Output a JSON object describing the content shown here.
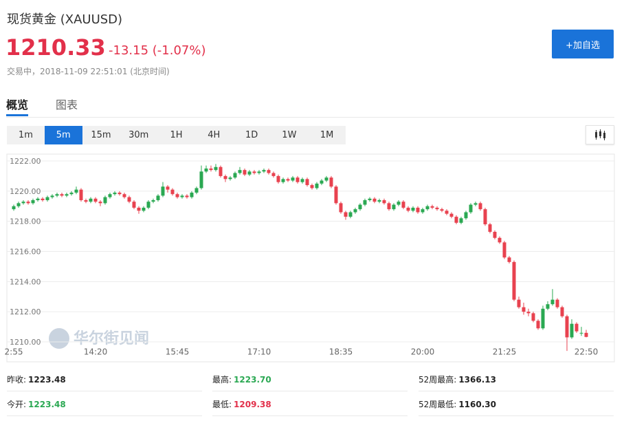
{
  "header": {
    "title": "现货黄金 (XAUUSD)",
    "price": "1210.33",
    "change": "-13.15 (-1.07%)",
    "status": "交易中，2018-11-09 22:51:01 (北京时间)",
    "button": "+加自选"
  },
  "tabs": [
    "概览",
    "图表"
  ],
  "periods": [
    "1m",
    "5m",
    "15m",
    "30m",
    "1H",
    "4H",
    "1D",
    "1W",
    "1M"
  ],
  "active_period": 1,
  "watermark": "华尔街见闻",
  "chart_data": {
    "type": "candlestick",
    "up_color": "#2aa852",
    "down_color": "#e8424f",
    "ylim": [
      1210,
      1222
    ],
    "yticks": [
      {
        "value": 1210,
        "label": "1210.00"
      },
      {
        "value": 1212,
        "label": "1212.00"
      },
      {
        "value": 1214,
        "label": "1214.00"
      },
      {
        "value": 1216,
        "label": "1216.00"
      },
      {
        "value": 1218,
        "label": "1218.00"
      },
      {
        "value": 1220,
        "label": "1220.00"
      },
      {
        "value": 1222,
        "label": "1222.00"
      }
    ],
    "xtick_labels": [
      "2:55",
      "14:20",
      "15:45",
      "17:10",
      "18:35",
      "20:00",
      "21:25",
      "22:50"
    ],
    "grid": true,
    "ohlc": [
      [
        1218.8,
        1219.1,
        1218.7,
        1219.0
      ],
      [
        1219.0,
        1219.3,
        1218.9,
        1219.2
      ],
      [
        1219.2,
        1219.4,
        1219.1,
        1219.3
      ],
      [
        1219.3,
        1219.4,
        1219.1,
        1219.2
      ],
      [
        1219.2,
        1219.5,
        1219.1,
        1219.4
      ],
      [
        1219.4,
        1219.6,
        1219.3,
        1219.5
      ],
      [
        1219.5,
        1219.6,
        1219.3,
        1219.4
      ],
      [
        1219.4,
        1219.7,
        1219.3,
        1219.6
      ],
      [
        1219.6,
        1219.8,
        1219.5,
        1219.7
      ],
      [
        1219.7,
        1219.9,
        1219.6,
        1219.8
      ],
      [
        1219.8,
        1219.9,
        1219.6,
        1219.7
      ],
      [
        1219.7,
        1219.9,
        1219.6,
        1219.8
      ],
      [
        1219.8,
        1220.0,
        1219.7,
        1219.9
      ],
      [
        1219.9,
        1220.3,
        1219.8,
        1220.1
      ],
      [
        1220.1,
        1220.2,
        1219.3,
        1219.4
      ],
      [
        1219.4,
        1219.5,
        1219.2,
        1219.3
      ],
      [
        1219.3,
        1219.6,
        1219.2,
        1219.5
      ],
      [
        1219.5,
        1219.6,
        1219.2,
        1219.3
      ],
      [
        1219.3,
        1219.4,
        1219.0,
        1219.2
      ],
      [
        1219.2,
        1219.7,
        1219.1,
        1219.6
      ],
      [
        1219.6,
        1219.9,
        1219.5,
        1219.8
      ],
      [
        1219.8,
        1220.0,
        1219.7,
        1219.9
      ],
      [
        1219.9,
        1220.0,
        1219.7,
        1219.8
      ],
      [
        1219.8,
        1219.9,
        1219.5,
        1219.6
      ],
      [
        1219.6,
        1219.7,
        1219.2,
        1219.3
      ],
      [
        1219.3,
        1219.4,
        1218.8,
        1218.9
      ],
      [
        1218.9,
        1219.0,
        1218.5,
        1218.7
      ],
      [
        1218.7,
        1219.0,
        1218.6,
        1218.9
      ],
      [
        1218.9,
        1219.4,
        1218.8,
        1219.3
      ],
      [
        1219.3,
        1219.5,
        1219.2,
        1219.4
      ],
      [
        1219.4,
        1219.8,
        1219.3,
        1219.7
      ],
      [
        1219.7,
        1220.6,
        1219.6,
        1220.3
      ],
      [
        1220.3,
        1220.4,
        1219.9,
        1220.1
      ],
      [
        1220.1,
        1220.2,
        1219.7,
        1219.8
      ],
      [
        1219.8,
        1219.9,
        1219.5,
        1219.6
      ],
      [
        1219.6,
        1219.8,
        1219.5,
        1219.7
      ],
      [
        1219.7,
        1219.8,
        1219.5,
        1219.6
      ],
      [
        1219.6,
        1220.0,
        1219.5,
        1219.9
      ],
      [
        1219.9,
        1220.3,
        1219.8,
        1220.2
      ],
      [
        1220.2,
        1221.7,
        1220.1,
        1221.3
      ],
      [
        1221.3,
        1221.7,
        1221.2,
        1221.5
      ],
      [
        1221.5,
        1221.7,
        1221.3,
        1221.4
      ],
      [
        1221.4,
        1221.8,
        1221.3,
        1221.6
      ],
      [
        1221.6,
        1221.7,
        1220.9,
        1221.0
      ],
      [
        1221.0,
        1221.1,
        1220.6,
        1220.8
      ],
      [
        1220.8,
        1221.0,
        1220.7,
        1220.9
      ],
      [
        1220.9,
        1221.3,
        1220.8,
        1221.2
      ],
      [
        1221.2,
        1221.6,
        1221.1,
        1221.4
      ],
      [
        1221.4,
        1221.5,
        1221.0,
        1221.1
      ],
      [
        1221.1,
        1221.4,
        1221.0,
        1221.3
      ],
      [
        1221.3,
        1221.4,
        1221.1,
        1221.2
      ],
      [
        1221.2,
        1221.4,
        1221.1,
        1221.3
      ],
      [
        1221.3,
        1221.5,
        1221.2,
        1221.4
      ],
      [
        1221.4,
        1221.5,
        1221.1,
        1221.2
      ],
      [
        1221.2,
        1221.3,
        1220.9,
        1221.0
      ],
      [
        1221.0,
        1221.1,
        1220.5,
        1220.6
      ],
      [
        1220.6,
        1220.9,
        1220.5,
        1220.8
      ],
      [
        1220.8,
        1220.9,
        1220.6,
        1220.7
      ],
      [
        1220.7,
        1221.0,
        1220.6,
        1220.9
      ],
      [
        1220.9,
        1221.0,
        1220.5,
        1220.6
      ],
      [
        1220.6,
        1220.9,
        1220.5,
        1220.8
      ],
      [
        1220.8,
        1220.9,
        1220.3,
        1220.4
      ],
      [
        1220.4,
        1220.5,
        1220.1,
        1220.2
      ],
      [
        1220.2,
        1220.6,
        1220.1,
        1220.5
      ],
      [
        1220.5,
        1220.8,
        1220.4,
        1220.7
      ],
      [
        1220.7,
        1221.0,
        1220.6,
        1220.9
      ],
      [
        1220.9,
        1221.0,
        1220.2,
        1220.3
      ],
      [
        1220.3,
        1220.4,
        1219.1,
        1219.2
      ],
      [
        1219.2,
        1219.3,
        1218.5,
        1218.6
      ],
      [
        1218.6,
        1218.7,
        1218.1,
        1218.3
      ],
      [
        1218.3,
        1218.7,
        1218.2,
        1218.6
      ],
      [
        1218.6,
        1218.9,
        1218.5,
        1218.8
      ],
      [
        1218.8,
        1219.2,
        1218.7,
        1219.1
      ],
      [
        1219.1,
        1219.5,
        1219.0,
        1219.4
      ],
      [
        1219.4,
        1219.6,
        1219.3,
        1219.5
      ],
      [
        1219.5,
        1219.6,
        1219.2,
        1219.3
      ],
      [
        1219.3,
        1219.5,
        1219.2,
        1219.4
      ],
      [
        1219.4,
        1219.5,
        1219.1,
        1219.2
      ],
      [
        1219.2,
        1219.3,
        1218.7,
        1218.8
      ],
      [
        1218.8,
        1219.2,
        1218.7,
        1219.1
      ],
      [
        1219.1,
        1219.4,
        1219.0,
        1219.3
      ],
      [
        1219.3,
        1219.4,
        1218.8,
        1218.9
      ],
      [
        1218.9,
        1219.0,
        1218.6,
        1218.7
      ],
      [
        1218.7,
        1219.0,
        1218.6,
        1218.9
      ],
      [
        1218.9,
        1219.0,
        1218.5,
        1218.6
      ],
      [
        1218.6,
        1218.9,
        1218.5,
        1218.8
      ],
      [
        1218.8,
        1219.1,
        1218.7,
        1219.0
      ],
      [
        1219.0,
        1219.1,
        1218.8,
        1218.9
      ],
      [
        1218.9,
        1219.0,
        1218.7,
        1218.8
      ],
      [
        1218.8,
        1218.9,
        1218.6,
        1218.7
      ],
      [
        1218.7,
        1218.8,
        1218.4,
        1218.5
      ],
      [
        1218.5,
        1218.6,
        1218.2,
        1218.3
      ],
      [
        1218.3,
        1218.4,
        1217.8,
        1217.9
      ],
      [
        1217.9,
        1218.3,
        1217.8,
        1218.2
      ],
      [
        1218.2,
        1218.7,
        1218.1,
        1218.6
      ],
      [
        1218.6,
        1219.2,
        1218.5,
        1219.1
      ],
      [
        1219.1,
        1219.3,
        1219.0,
        1219.2
      ],
      [
        1219.2,
        1219.3,
        1218.7,
        1218.8
      ],
      [
        1218.8,
        1218.9,
        1217.7,
        1217.8
      ],
      [
        1217.8,
        1217.9,
        1217.2,
        1217.3
      ],
      [
        1217.3,
        1217.4,
        1216.8,
        1216.9
      ],
      [
        1216.9,
        1217.0,
        1216.5,
        1216.6
      ],
      [
        1216.6,
        1216.7,
        1215.5,
        1215.6
      ],
      [
        1215.6,
        1215.7,
        1215.2,
        1215.3
      ],
      [
        1215.3,
        1215.4,
        1212.7,
        1212.8
      ],
      [
        1212.8,
        1213.0,
        1212.2,
        1212.3
      ],
      [
        1212.3,
        1212.6,
        1211.8,
        1212.0
      ],
      [
        1212.0,
        1212.2,
        1211.7,
        1211.9
      ],
      [
        1211.9,
        1212.0,
        1211.3,
        1211.4
      ],
      [
        1211.4,
        1211.5,
        1210.8,
        1210.9
      ],
      [
        1210.9,
        1212.4,
        1210.8,
        1212.2
      ],
      [
        1212.2,
        1212.7,
        1212.1,
        1212.5
      ],
      [
        1212.5,
        1213.5,
        1212.4,
        1212.8
      ],
      [
        1212.8,
        1212.9,
        1212.2,
        1212.3
      ],
      [
        1212.3,
        1212.4,
        1211.6,
        1211.7
      ],
      [
        1211.7,
        1211.8,
        1209.4,
        1210.3
      ],
      [
        1210.3,
        1211.5,
        1210.2,
        1211.2
      ],
      [
        1211.2,
        1211.3,
        1210.6,
        1210.7
      ],
      [
        1210.6,
        1211.0,
        1210.4,
        1210.6
      ],
      [
        1210.6,
        1210.8,
        1210.3,
        1210.33
      ]
    ]
  },
  "stats": [
    [
      {
        "label": "昨收:",
        "value": "1223.48",
        "color": "#222222"
      },
      {
        "label": "最高:",
        "value": "1223.70",
        "color": "#2aa852"
      },
      {
        "label": "52周最高:",
        "value": "1366.13",
        "color": "#222222"
      }
    ],
    [
      {
        "label": "今开:",
        "value": "1223.48",
        "color": "#2aa852"
      },
      {
        "label": "最低:",
        "value": "1209.38",
        "color": "#e2304a"
      },
      {
        "label": "52周最低:",
        "value": "1160.30",
        "color": "#222222"
      }
    ]
  ]
}
